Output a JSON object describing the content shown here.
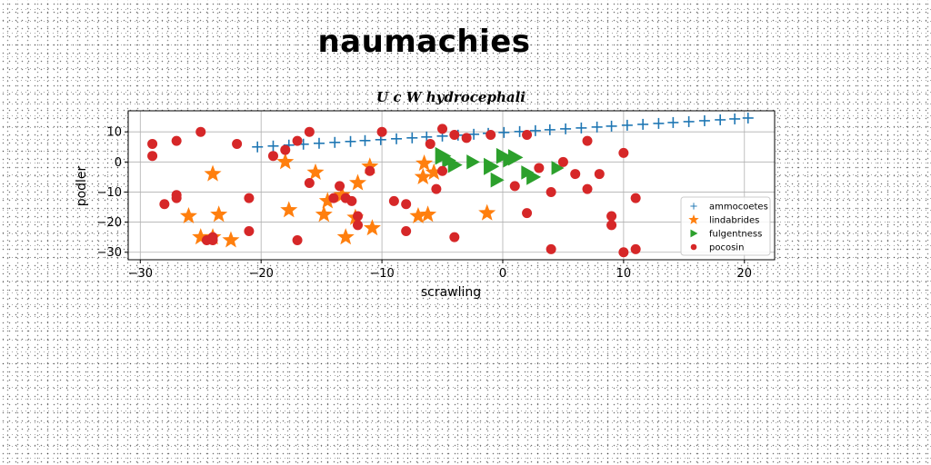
{
  "main_title": "naumachies",
  "chart_data": {
    "type": "scatter",
    "title": "U c W hydrocephali",
    "xlabel": "scrawling",
    "ylabel": "podler",
    "xlim": [
      -31,
      22.5
    ],
    "ylim": [
      -32.5,
      17
    ],
    "xticks": [
      -30,
      -20,
      -10,
      0,
      10,
      20
    ],
    "yticks": [
      10,
      0,
      -10,
      -20,
      -30
    ],
    "grid": true,
    "legend_position": "lower right",
    "series": [
      {
        "name": "ammocoetes",
        "marker": "plus",
        "color": "#1f77b4",
        "x": [
          -20.3,
          -19.0,
          -17.7,
          -16.5,
          -15.2,
          -13.9,
          -12.6,
          -11.4,
          -10.1,
          -8.8,
          -7.5,
          -6.3,
          -5.0,
          -3.7,
          -2.4,
          -1.2,
          0.1,
          1.4,
          2.7,
          3.9,
          5.2,
          6.5,
          7.8,
          9.0,
          10.3,
          11.6,
          12.9,
          14.1,
          15.4,
          16.7,
          18.0,
          19.2,
          20.3
        ],
        "y": [
          5.0,
          5.3,
          5.6,
          5.9,
          6.2,
          6.5,
          6.8,
          7.1,
          7.4,
          7.7,
          8.0,
          8.3,
          8.6,
          8.9,
          9.2,
          9.5,
          9.8,
          10.1,
          10.4,
          10.7,
          11.0,
          11.3,
          11.6,
          11.9,
          12.2,
          12.5,
          12.8,
          13.1,
          13.4,
          13.7,
          14.0,
          14.3,
          14.6
        ]
      },
      {
        "name": "lindabrides",
        "marker": "star",
        "color": "#ff7f0e",
        "x": [
          -24.0,
          -26.0,
          -25.0,
          -24.0,
          -23.5,
          -22.5,
          -18.0,
          -17.7,
          -15.5,
          -14.8,
          -14.5,
          -13.3,
          -13.0,
          -12.2,
          -12.0,
          -11.0,
          -10.8,
          -7.0,
          -6.6,
          -6.5,
          -6.2,
          -5.7,
          -1.3
        ],
        "y": [
          -4.0,
          -18.0,
          -25.0,
          -25.0,
          -17.5,
          -26.0,
          0.0,
          -16.0,
          -3.5,
          -17.5,
          -13.0,
          -11.0,
          -25.0,
          -18.5,
          -7.0,
          -1.5,
          -22.0,
          -18.0,
          -5.0,
          -0.5,
          -17.5,
          -3.5,
          -17.0
        ]
      },
      {
        "name": "fulgentness",
        "marker": "triangle-right",
        "color": "#2ca02c",
        "x": [
          -5.0,
          -4.0,
          -2.5,
          -1.0,
          0.0,
          0.5,
          1.0,
          2.5,
          4.5,
          -4.5,
          -0.5,
          2.0
        ],
        "y": [
          2.0,
          -1.0,
          0.0,
          -1.5,
          2.0,
          0.5,
          1.5,
          -5.0,
          -2.0,
          0.5,
          -6.0,
          -3.5
        ],
        "size": [
          320,
          260,
          220,
          300,
          260,
          200,
          280,
          260,
          200,
          240,
          230,
          200
        ]
      },
      {
        "name": "pocosin",
        "marker": "circle",
        "color": "#d62728",
        "x": [
          -29.0,
          -29.0,
          -28.0,
          -27.0,
          -27.0,
          -27.0,
          -25.0,
          -24.5,
          -24.0,
          -24.0,
          -22.0,
          -21.0,
          -21.0,
          -19.0,
          -18.0,
          -17.0,
          -17.0,
          -16.0,
          -16.0,
          -14.0,
          -13.5,
          -13.0,
          -12.5,
          -12.0,
          -12.0,
          -11.0,
          -10.0,
          -9.0,
          -8.0,
          -8.0,
          -6.0,
          -5.5,
          -5.0,
          -5.0,
          -4.0,
          -4.0,
          -3.0,
          -1.0,
          1.0,
          2.0,
          2.0,
          3.0,
          4.0,
          4.0,
          5.0,
          6.0,
          7.0,
          7.0,
          8.0,
          9.0,
          9.0,
          10.0,
          10.0,
          11.0,
          11.0
        ],
        "y": [
          6.0,
          2.0,
          -14.0,
          7.0,
          -11.0,
          -12.0,
          10.0,
          -26.0,
          -25.0,
          -26.0,
          6.0,
          -12.0,
          -23.0,
          2.0,
          4.0,
          7.0,
          -26.0,
          10.0,
          -7.0,
          -12.0,
          -8.0,
          -12.0,
          -13.0,
          -18.0,
          -21.0,
          -3.0,
          10.0,
          -13.0,
          -14.0,
          -23.0,
          6.0,
          -9.0,
          11.0,
          -3.0,
          -25.0,
          9.0,
          8.0,
          9.0,
          -8.0,
          9.0,
          -17.0,
          -2.0,
          -10.0,
          -29.0,
          0.0,
          -4.0,
          7.0,
          -9.0,
          -4.0,
          -18.0,
          -21.0,
          3.0,
          -30.0,
          -12.0,
          -29.0
        ]
      }
    ]
  }
}
